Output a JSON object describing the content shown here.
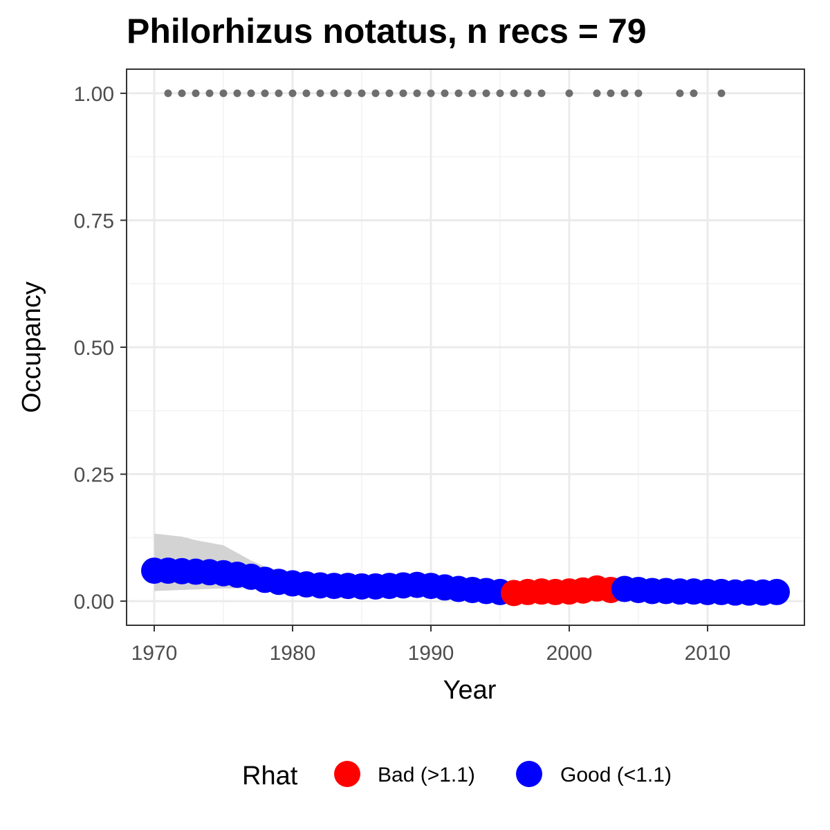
{
  "chart_data": {
    "type": "scatter",
    "title": "Philorhizus notatus, n recs = 79",
    "xlabel": "Year",
    "ylabel": "Occupancy",
    "xlim": [
      1968,
      2017
    ],
    "ylim": [
      -0.0475,
      1.0475
    ],
    "x_ticks": [
      1970,
      1980,
      1990,
      2000,
      2010
    ],
    "x_tick_labels": [
      "1970",
      "1980",
      "1990",
      "2000",
      "2010"
    ],
    "y_ticks": [
      0,
      0.25,
      0.5,
      0.75,
      1
    ],
    "y_tick_labels": [
      "0.00",
      "0.25",
      "0.50",
      "0.75",
      "1.00"
    ],
    "grid": true,
    "legend": {
      "title": "Rhat",
      "position": "bottom",
      "entries": [
        {
          "label": "Bad (>1.1)",
          "color": "#ff0000"
        },
        {
          "label": "Good (<1.1)",
          "color": "#0000ff"
        }
      ]
    },
    "colors": {
      "bad": "#ff0000",
      "good": "#0000ff",
      "records": "#6e6e6e",
      "ribbon": "#d3d3d3"
    },
    "series": [
      {
        "name": "Rhat",
        "x": [
          1970,
          1971,
          1972,
          1973,
          1974,
          1975,
          1976,
          1977,
          1978,
          1979,
          1980,
          1981,
          1982,
          1983,
          1984,
          1985,
          1986,
          1987,
          1988,
          1989,
          1990,
          1991,
          1992,
          1993,
          1994,
          1995,
          1996,
          1997,
          1998,
          1999,
          2000,
          2001,
          2002,
          2003,
          2004,
          2005,
          2006,
          2007,
          2008,
          2009,
          2010,
          2011,
          2012,
          2013,
          2014,
          2015
        ],
        "y": [
          0.06,
          0.06,
          0.059,
          0.058,
          0.057,
          0.055,
          0.052,
          0.048,
          0.042,
          0.038,
          0.035,
          0.033,
          0.031,
          0.03,
          0.03,
          0.029,
          0.029,
          0.03,
          0.031,
          0.032,
          0.03,
          0.027,
          0.024,
          0.022,
          0.02,
          0.018,
          0.016,
          0.018,
          0.019,
          0.018,
          0.019,
          0.021,
          0.025,
          0.022,
          0.024,
          0.022,
          0.02,
          0.02,
          0.019,
          0.019,
          0.018,
          0.018,
          0.017,
          0.017,
          0.017,
          0.018
        ],
        "rhat": [
          "good",
          "good",
          "good",
          "good",
          "good",
          "good",
          "good",
          "good",
          "good",
          "good",
          "good",
          "good",
          "good",
          "good",
          "good",
          "good",
          "good",
          "good",
          "good",
          "good",
          "good",
          "good",
          "good",
          "good",
          "good",
          "good",
          "bad",
          "bad",
          "bad",
          "bad",
          "bad",
          "bad",
          "bad",
          "bad",
          "good",
          "good",
          "good",
          "good",
          "good",
          "good",
          "good",
          "good",
          "good",
          "good",
          "good",
          "good"
        ]
      }
    ],
    "ribbon": {
      "x": [
        1970,
        1971,
        1972,
        1973,
        1974,
        1975,
        1976,
        1977,
        1978,
        1979,
        1980,
        1981,
        1982,
        1983,
        1984,
        1985,
        1986,
        1987,
        1988,
        1989,
        1990,
        1991,
        1992,
        1993,
        1994,
        1995,
        1996,
        1997,
        1998,
        1999,
        2000,
        2001,
        2002,
        2003,
        2004,
        2005,
        2006,
        2007,
        2008,
        2009,
        2010,
        2011,
        2012,
        2013,
        2014,
        2015
      ],
      "upper": [
        0.133,
        0.13,
        0.127,
        0.12,
        0.115,
        0.11,
        0.095,
        0.08,
        0.068,
        0.06,
        0.055,
        0.05,
        0.046,
        0.043,
        0.041,
        0.04,
        0.04,
        0.041,
        0.042,
        0.043,
        0.04,
        0.036,
        0.032,
        0.029,
        0.026,
        0.024,
        0.022,
        0.024,
        0.025,
        0.024,
        0.025,
        0.028,
        0.032,
        0.029,
        0.03,
        0.028,
        0.026,
        0.025,
        0.024,
        0.024,
        0.023,
        0.023,
        0.022,
        0.022,
        0.022,
        0.023
      ],
      "lower": [
        0.02,
        0.021,
        0.022,
        0.023,
        0.024,
        0.025,
        0.025,
        0.026,
        0.025,
        0.024,
        0.023,
        0.022,
        0.021,
        0.021,
        0.021,
        0.02,
        0.02,
        0.021,
        0.022,
        0.022,
        0.021,
        0.019,
        0.017,
        0.016,
        0.015,
        0.013,
        0.011,
        0.013,
        0.014,
        0.013,
        0.014,
        0.015,
        0.018,
        0.016,
        0.018,
        0.017,
        0.015,
        0.015,
        0.014,
        0.014,
        0.013,
        0.013,
        0.012,
        0.012,
        0.012,
        0.013
      ]
    },
    "records": {
      "x": [
        1971,
        1972,
        1973,
        1974,
        1975,
        1976,
        1977,
        1978,
        1979,
        1980,
        1981,
        1982,
        1983,
        1984,
        1985,
        1986,
        1987,
        1988,
        1989,
        1990,
        1991,
        1992,
        1993,
        1994,
        1995,
        1996,
        1997,
        1998,
        2000,
        2002,
        2003,
        2004,
        2005,
        2008,
        2009,
        2011
      ],
      "y": 1
    }
  }
}
